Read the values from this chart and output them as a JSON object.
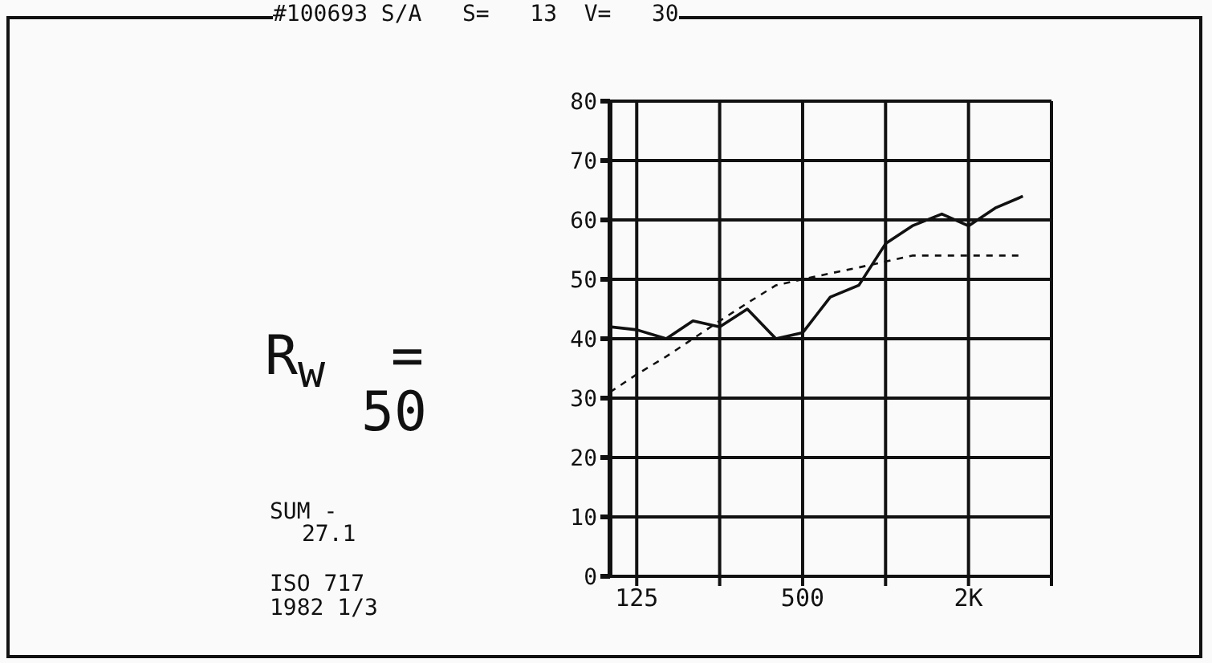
{
  "chart_data": {
    "type": "line",
    "title": "#100693 S/A   S=   13  V=   30",
    "annotations": [
      "R$_{w}$  =",
      "50",
      "SUM -",
      "27.1",
      "ISO 717",
      "1982 1/3"
    ],
    "x": [
      100,
      125,
      160,
      200,
      250,
      315,
      400,
      500,
      630,
      800,
      1000,
      1250,
      1600,
      2000,
      2500,
      3150
    ],
    "series": [
      {
        "color": "#111111",
        "line_style": "solid",
        "values": [
          42,
          41.5,
          40,
          43,
          42,
          45,
          40,
          41,
          47,
          49,
          56,
          59,
          61,
          59,
          62,
          64
        ]
      },
      {
        "color": "#111111",
        "line_style": "dashed",
        "values": [
          31,
          34,
          37,
          40,
          43,
          46,
          49,
          50,
          51,
          52,
          53,
          54,
          54,
          54,
          54,
          54
        ]
      }
    ],
    "log": "x",
    "xlim": [
      100,
      4000
    ],
    "xticks": [
      {
        "value": 125,
        "label": "125"
      },
      {
        "value": 250,
        "label": null
      },
      {
        "value": 500,
        "label": "500"
      },
      {
        "value": 1000,
        "label": null
      },
      {
        "value": 2000,
        "label": "2K"
      },
      {
        "value": 4000,
        "label": null
      }
    ],
    "ylim": [
      0,
      80
    ],
    "yticks": [
      0,
      10,
      20,
      30,
      40,
      50,
      60,
      70,
      80
    ],
    "grid": true,
    "marker": "none"
  }
}
